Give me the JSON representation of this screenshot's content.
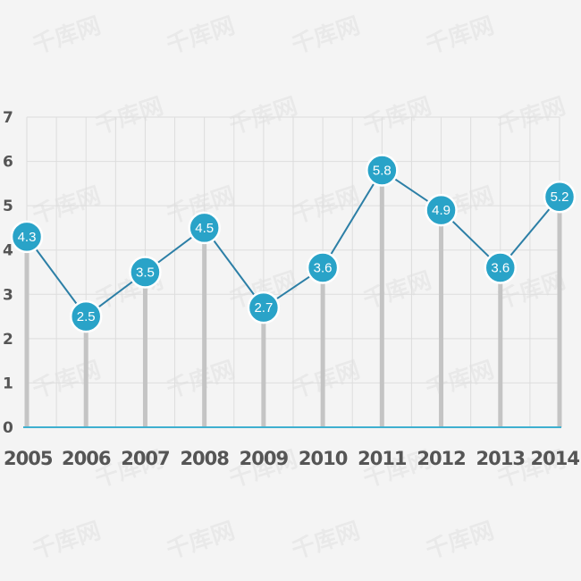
{
  "chart_data": {
    "type": "line",
    "title": "",
    "xlabel": "",
    "ylabel": "",
    "categories": [
      "2005",
      "2006",
      "2007",
      "2008",
      "2009",
      "2010",
      "2011",
      "2012",
      "2013",
      "2014"
    ],
    "values": [
      4.3,
      2.5,
      3.5,
      4.5,
      2.7,
      3.6,
      5.8,
      4.9,
      3.6,
      5.2
    ],
    "value_labels": [
      "4.3",
      "2.5",
      "3.5",
      "4.5",
      "2.7",
      "3.6",
      "5.8",
      "4.9",
      "3.6",
      "5.2"
    ],
    "ylim": [
      0,
      7
    ],
    "yticks": [
      "0",
      "1",
      "2",
      "3",
      "4",
      "5",
      "6",
      "7"
    ],
    "grid": true,
    "legend": "none",
    "watermark_text": "千库网",
    "colors": {
      "line": "#2c7fa6",
      "marker": "#29a3c8",
      "stem": "#c4c4c4",
      "baseline": "#3fb0d0",
      "grid": "#dddddd",
      "background": "#f4f4f4"
    }
  }
}
